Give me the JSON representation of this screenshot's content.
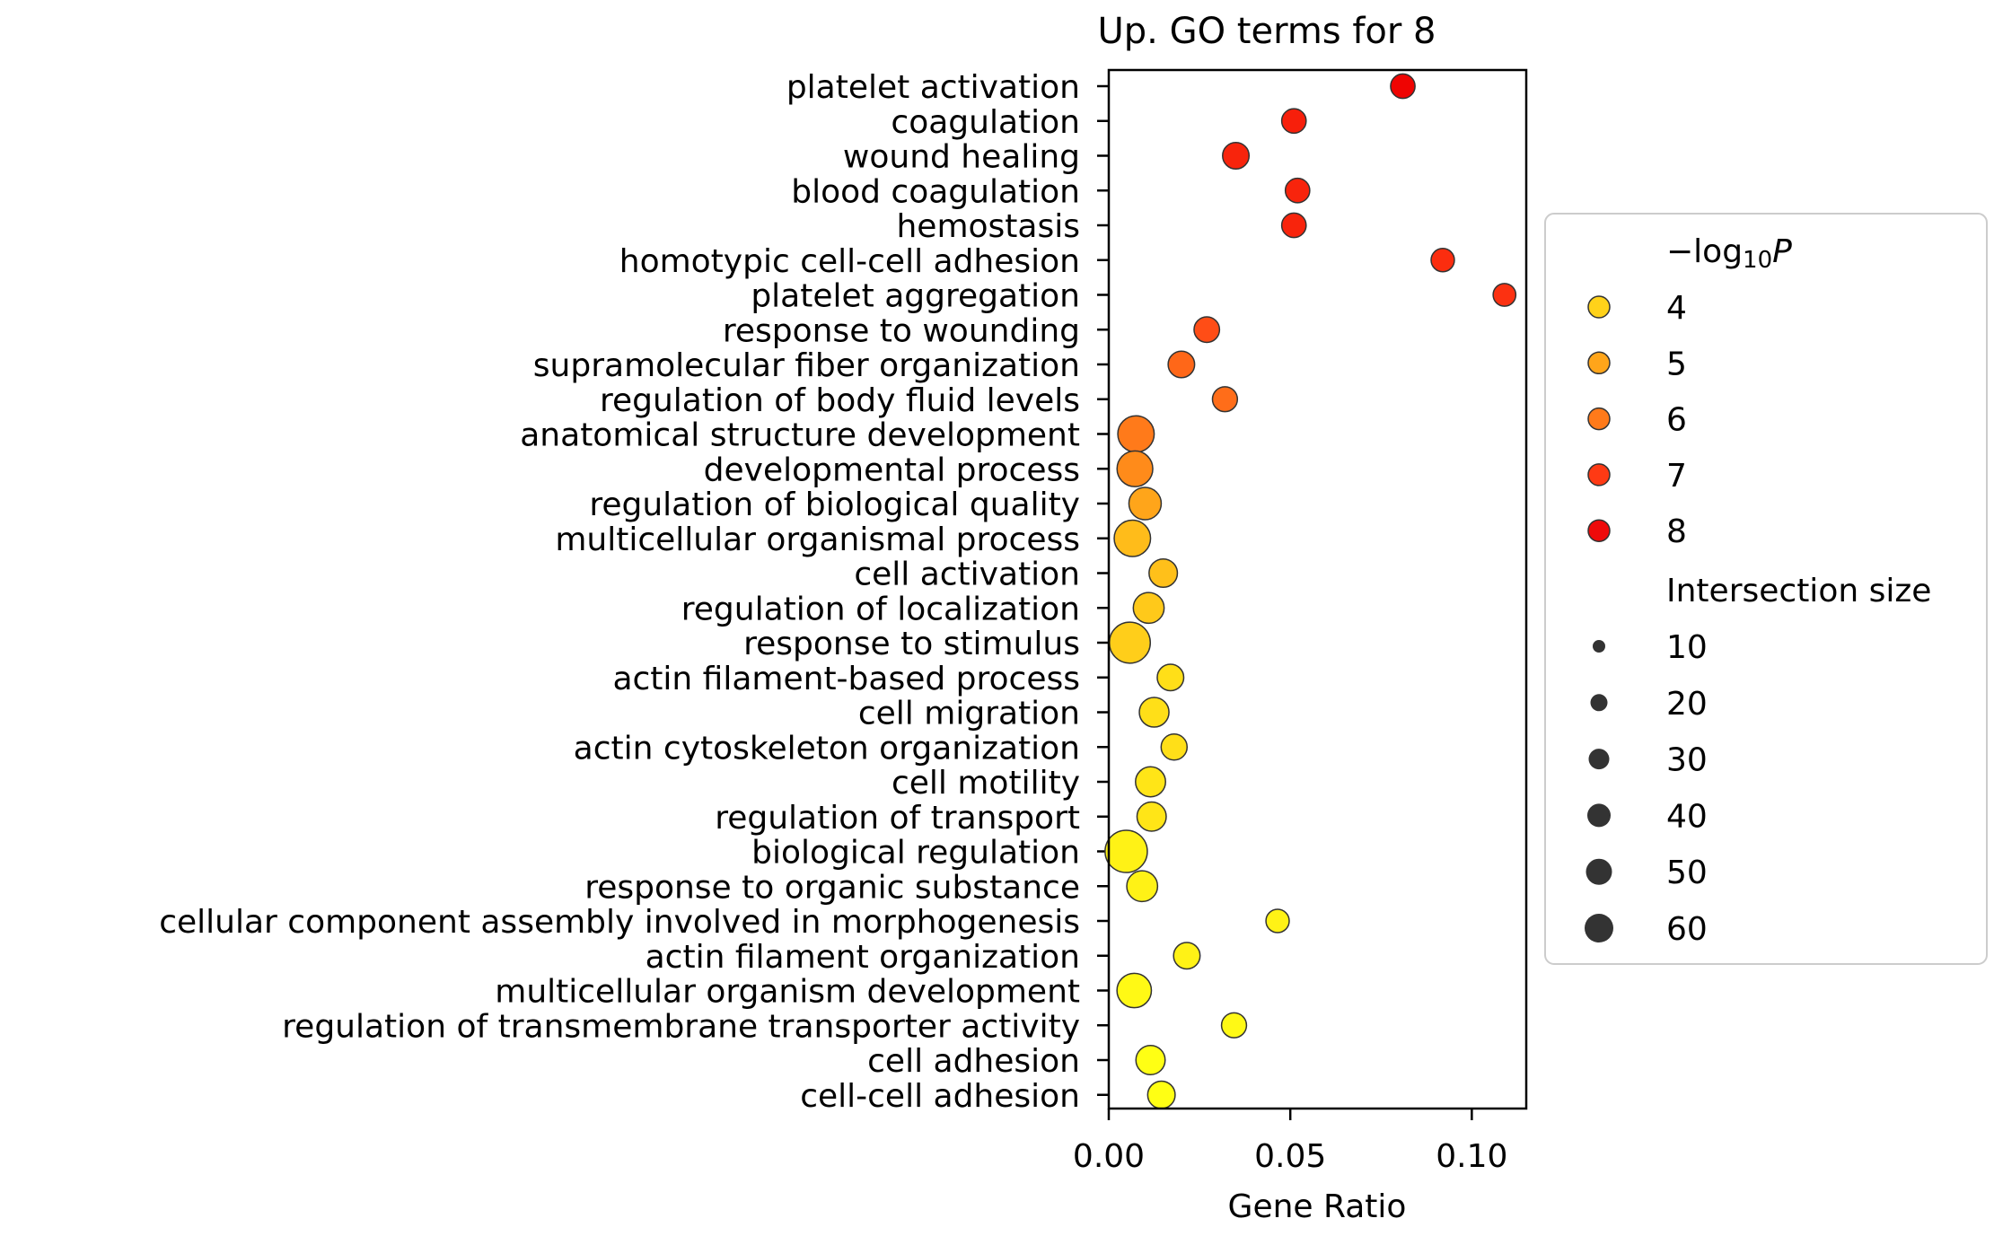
{
  "chart_data": {
    "type": "scatter",
    "title": "Up. GO terms for 8",
    "xlabel": "Gene Ratio",
    "ylabel": "",
    "xlim": [
      0.0,
      0.115
    ],
    "xticks": [
      0.0,
      0.05,
      0.1
    ],
    "xtick_labels": [
      "0.00",
      "0.05",
      "0.10"
    ],
    "grid": false,
    "legend_position": "right",
    "categories": [
      "platelet activation",
      "coagulation",
      "wound healing",
      "blood coagulation",
      "hemostasis",
      "homotypic cell-cell adhesion",
      "platelet aggregation",
      "response to wounding",
      "supramolecular fiber organization",
      "regulation of body fluid levels",
      "anatomical structure development",
      "developmental process",
      "regulation of biological quality",
      "multicellular organismal process",
      "cell activation",
      "regulation of localization",
      "response to stimulus",
      "actin filament-based process",
      "cell migration",
      "actin cytoskeleton organization",
      "cell motility",
      "regulation of transport",
      "biological regulation",
      "response to organic substance",
      "cellular component assembly involved in morphogenesis",
      "actin filament organization",
      "multicellular organism development",
      "regulation of transmembrane transporter activity",
      "cell adhesion",
      "cell-cell adhesion"
    ],
    "gene_ratio": [
      0.081,
      0.051,
      0.035,
      0.052,
      0.051,
      0.092,
      0.109,
      0.027,
      0.02,
      0.032,
      0.0075,
      0.0072,
      0.01,
      0.0065,
      0.015,
      0.011,
      0.0058,
      0.017,
      0.0125,
      0.018,
      0.0115,
      0.0118,
      0.0048,
      0.0092,
      0.0465,
      0.0215,
      0.007,
      0.0345,
      0.0115,
      0.0145
    ],
    "neg_log10_p": [
      8.2,
      7.6,
      7.5,
      7.5,
      7.5,
      7.3,
      7.2,
      6.7,
      6.3,
      6.2,
      6.0,
      5.6,
      5.0,
      4.5,
      4.4,
      4.2,
      4.1,
      3.8,
      3.8,
      3.8,
      3.7,
      3.7,
      3.5,
      3.5,
      3.5,
      3.5,
      3.4,
      3.4,
      3.3,
      3.3
    ],
    "intersection_size": [
      14,
      14,
      18,
      14,
      14,
      12,
      11,
      16,
      18,
      15,
      44,
      42,
      32,
      44,
      22,
      28,
      60,
      18,
      25,
      17,
      26,
      24,
      65,
      28,
      12,
      18,
      38,
      15,
      24,
      20
    ],
    "legend": {
      "color_title_main": "−log",
      "color_title_sub": "10",
      "color_title_var": "P",
      "color_entries": [
        {
          "label": "4",
          "value": 4,
          "color": "#ffd21a"
        },
        {
          "label": "5",
          "value": 5,
          "color": "#ffa51a"
        },
        {
          "label": "6",
          "value": 6,
          "color": "#ff7a1a"
        },
        {
          "label": "7",
          "value": 7,
          "color": "#ff3a14"
        },
        {
          "label": "8",
          "value": 8,
          "color": "#ee0a0a"
        }
      ],
      "size_title": "Intersection size",
      "size_entries": [
        {
          "label": "10",
          "value": 10
        },
        {
          "label": "20",
          "value": 20
        },
        {
          "label": "30",
          "value": 30
        },
        {
          "label": "40",
          "value": 40
        },
        {
          "label": "50",
          "value": 50
        },
        {
          "label": "60",
          "value": 60
        }
      ]
    },
    "colors": {
      "low": "#ffff14",
      "mid": "#ffa51a",
      "high": "#ee0000",
      "marker_edge": "#333333",
      "legend_size_marker": "#333333"
    }
  }
}
